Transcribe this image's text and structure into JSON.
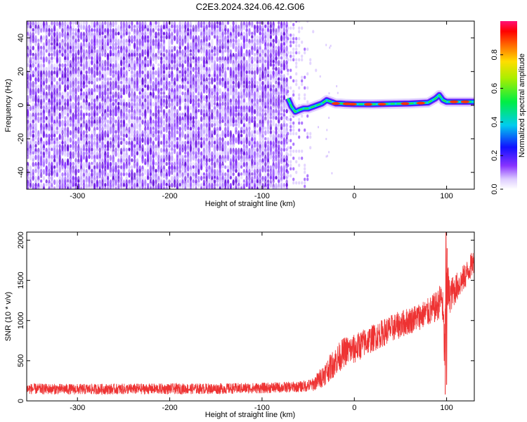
{
  "title": "C2E3.2024.324.06.42.G06",
  "chart_data": [
    {
      "type": "heatmap",
      "xlabel": "Height of straight line (km)",
      "ylabel": "Frequency (Hz)",
      "xlim": [
        -355,
        130
      ],
      "ylim": [
        -50,
        50
      ],
      "x_ticks": [
        -300,
        -200,
        -100,
        0,
        100
      ],
      "x_tick_labels": [
        "-300",
        "-200",
        "-100",
        "0",
        "100"
      ],
      "y_ticks": [
        -40,
        -20,
        0,
        20,
        40
      ],
      "y_tick_labels": [
        "-40",
        "-20",
        "0",
        "20",
        "40"
      ],
      "grid": false,
      "colorbar": {
        "label": "Normalized spectral amplitude",
        "range": [
          0,
          1
        ],
        "ticks": [
          0,
          0.2,
          0.4,
          0.6,
          0.8
        ],
        "tick_labels": [
          "0.0",
          "0.2",
          "0.4",
          "0.6",
          "0.8"
        ],
        "colormap": "rainbow"
      },
      "noise_region": {
        "x_range": [
          -355,
          -72
        ],
        "amplitude_range": [
          0.05,
          0.12
        ],
        "color": "#7722ee"
      },
      "sparse_region": {
        "x_range": [
          -72,
          -40
        ]
      },
      "signal_track": {
        "x": [
          -72,
          -68,
          -64,
          -60,
          -55,
          -50,
          -45,
          -40,
          -35,
          -30,
          -25,
          -20,
          -15,
          -10,
          0,
          20,
          40,
          60,
          80,
          88,
          92,
          96,
          100,
          130
        ],
        "y": [
          4,
          -1,
          -4,
          -3,
          -2,
          -2,
          -1,
          0,
          1,
          3,
          2,
          1,
          1,
          0.8,
          0.6,
          0.5,
          0.8,
          1,
          1.5,
          4,
          6,
          3,
          2,
          2
        ]
      }
    },
    {
      "type": "line",
      "xlabel": "Height of straight line (km)",
      "ylabel": "SNR (10 * v/v)",
      "xlim": [
        -355,
        130
      ],
      "ylim": [
        0,
        2100
      ],
      "x_ticks": [
        -300,
        -200,
        -100,
        0,
        100
      ],
      "x_tick_labels": [
        "-300",
        "-200",
        "-100",
        "0",
        "100"
      ],
      "y_ticks": [
        0,
        500,
        1000,
        1500,
        2000
      ],
      "y_tick_labels": [
        "0",
        "500",
        "1000",
        "1500",
        "2000"
      ],
      "grid": false,
      "series_color": "#ee3333",
      "series": [
        {
          "x": [
            -355,
            -300,
            -250,
            -200,
            -150,
            -100,
            -60,
            -45,
            -35,
            -20,
            -10,
            0,
            10,
            20,
            30,
            40,
            50,
            60,
            70,
            80,
            90,
            95,
            98,
            100,
            103,
            110,
            120,
            130
          ],
          "y": [
            150,
            145,
            148,
            150,
            152,
            160,
            175,
            200,
            300,
            500,
            620,
            640,
            720,
            780,
            840,
            900,
            950,
            1000,
            1050,
            1100,
            1180,
            1300,
            600,
            1500,
            1300,
            1400,
            1550,
            1750
          ],
          "noise_amplitude": [
            90,
            90,
            90,
            90,
            90,
            90,
            90,
            110,
            180,
            250,
            250,
            250,
            240,
            230,
            230,
            230,
            230,
            230,
            230,
            240,
            260,
            300,
            500,
            600,
            300,
            250,
            220,
            200
          ]
        }
      ]
    }
  ]
}
